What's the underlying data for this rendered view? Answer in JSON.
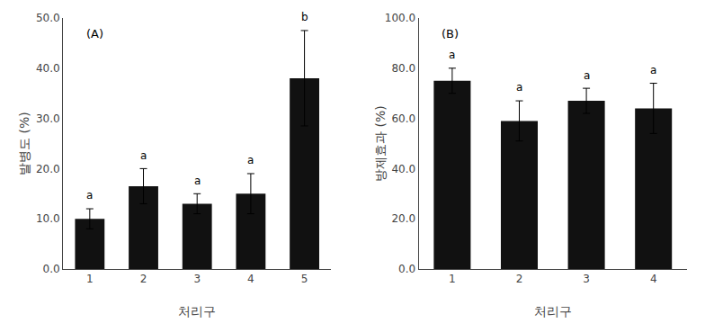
{
  "chart_data": [
    {
      "type": "bar",
      "categories": [
        "1",
        "2",
        "3",
        "4",
        "5"
      ],
      "values": [
        10.0,
        16.5,
        13.0,
        15.0,
        38.0
      ],
      "errors": [
        2.0,
        3.5,
        2.0,
        4.0,
        9.5
      ],
      "letters": [
        "a",
        "a",
        "a",
        "a",
        "b"
      ],
      "xlabel": "처리구",
      "ylabel": "발병도 (%)",
      "annotations": [
        "(A)"
      ],
      "color": "#111111",
      "ylim": [
        0,
        50.0
      ],
      "yticks": [
        {
          "value": 0,
          "label": "0.0"
        },
        {
          "value": 10,
          "label": "10.0"
        },
        {
          "value": 20,
          "label": "20.0"
        },
        {
          "value": 30,
          "label": "30.0"
        },
        {
          "value": 40,
          "label": "40.0"
        },
        {
          "value": 50,
          "label": "50.0"
        }
      ],
      "grid": false
    },
    {
      "type": "bar",
      "categories": [
        "1",
        "2",
        "3",
        "4"
      ],
      "values": [
        75.0,
        59.0,
        67.0,
        64.0
      ],
      "errors": [
        5.0,
        8.0,
        5.0,
        10.0
      ],
      "letters": [
        "a",
        "a",
        "a",
        "a"
      ],
      "xlabel": "처리구",
      "ylabel": "방제효과 (%)",
      "annotations": [
        "(B)"
      ],
      "color": "#111111",
      "ylim": [
        0,
        100.0
      ],
      "yticks": [
        {
          "value": 0,
          "label": "0.0"
        },
        {
          "value": 20,
          "label": "20.0"
        },
        {
          "value": 40,
          "label": "40.0"
        },
        {
          "value": 60,
          "label": "60.0"
        },
        {
          "value": 80,
          "label": "80.0"
        },
        {
          "value": 100,
          "label": "100.0"
        }
      ],
      "grid": false
    }
  ]
}
